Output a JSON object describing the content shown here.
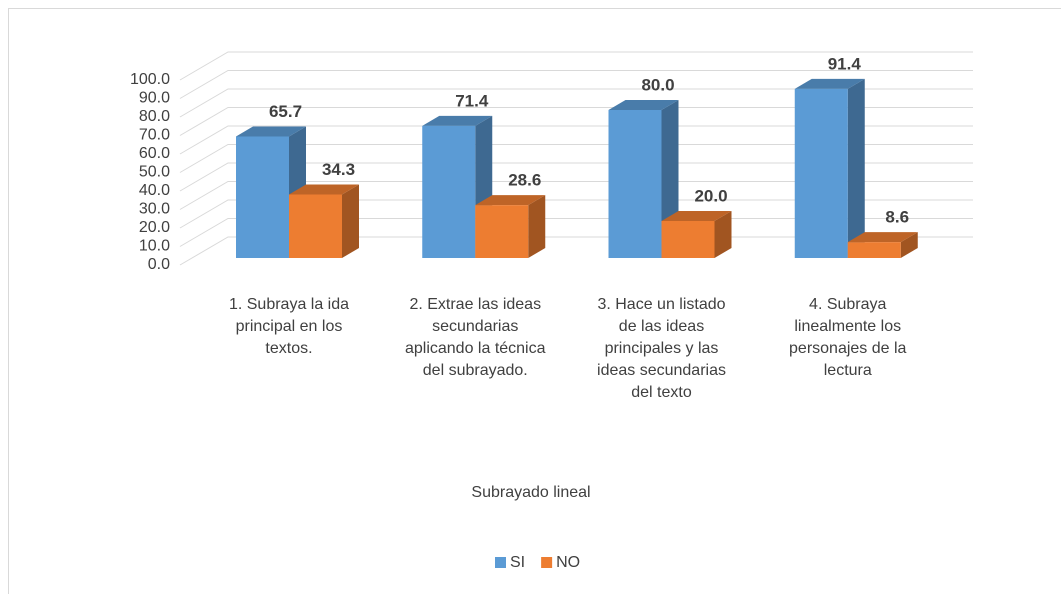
{
  "chart_data": {
    "type": "bar3d",
    "xlabel": "Subrayado lineal",
    "categories": [
      "1. Subraya la ida principal en los textos.",
      "2. Extrae las ideas secundarias aplicando la técnica del subrayado.",
      "3. Hace un listado de las ideas principales y las ideas secundarias del texto",
      "4. Subraya linealmente los personajes de la lectura"
    ],
    "series": [
      {
        "name": "SI",
        "color": "#5b9bd5",
        "values": [
          65.7,
          71.4,
          80,
          91.4
        ],
        "value_labels": [
          "65.7",
          "71.4",
          "80.0",
          "91.4"
        ]
      },
      {
        "name": "NO",
        "color": "#ed7d31",
        "values": [
          34.3,
          28.6,
          20,
          8.6
        ],
        "value_labels": [
          "34.3",
          "28.6",
          "20.0",
          "8.6"
        ]
      }
    ],
    "ylim": [
      0,
      100
    ],
    "yticks": [
      {
        "value": 0,
        "label": "0.0"
      },
      {
        "value": 10,
        "label": "10.0"
      },
      {
        "value": 20,
        "label": "20.0"
      },
      {
        "value": 30,
        "label": "30.0"
      },
      {
        "value": 40,
        "label": "40.0"
      },
      {
        "value": 50,
        "label": "50.0"
      },
      {
        "value": 60,
        "label": "60.0"
      },
      {
        "value": 70,
        "label": "70.0"
      },
      {
        "value": 80,
        "label": "80.0"
      },
      {
        "value": 90,
        "label": "90.0"
      },
      {
        "value": 100,
        "label": "100.0"
      }
    ],
    "grid": true,
    "legend": "bottom"
  }
}
